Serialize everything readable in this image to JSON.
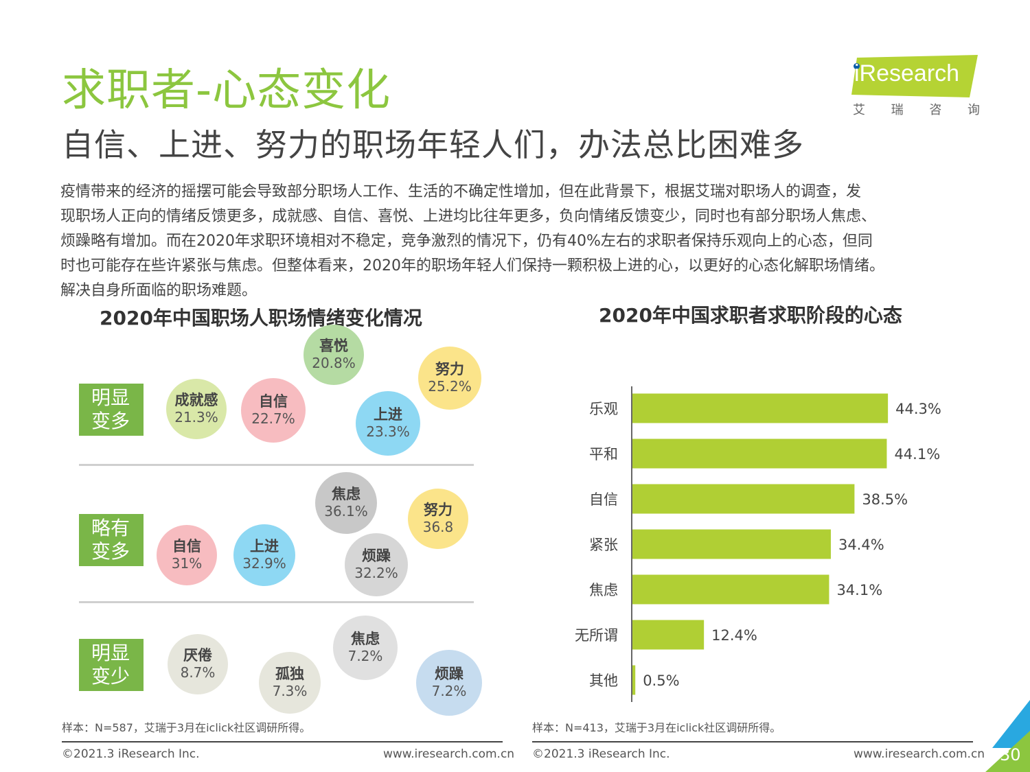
{
  "header": {
    "title": "求职者-心态变化",
    "subtitle": "自信、上进、努力的职场年轻人们，办法总比困难多",
    "logo_text": "iResearch",
    "logo_cn": [
      "艾",
      "瑞",
      "咨",
      "询"
    ]
  },
  "paragraph": [
    "疫情带来的经济的摇摆可能会导致部分职场人工作、生活的不确定性增加，但在此背景下，根据艾瑞对职场人的调查，发",
    "现职场人正向的情绪反馈更多，成就感、自信、喜悦、上进均比往年更多，负向情绪反馈变少，同时也有部分职场人焦虑、",
    "烦躁略有增加。而在2020年求职环境相对不稳定，竞争激烈的情况下，仍有40%左右的求职者保持乐观向上的心态，但同",
    "时也可能存在些许紧张与焦虑。但整体看来，2020年的职场年轻人们保持一颗积极上进的心，以更好的心态化解职场情绪。",
    "解决自身所面临的职场难题。"
  ],
  "left_chart": {
    "title": "2020年中国职场人职场情绪变化情况",
    "rows": [
      {
        "label_1": "明显",
        "label_2": "变多"
      },
      {
        "label_1": "略有",
        "label_2": "变多"
      },
      {
        "label_1": "明显",
        "label_2": "变少"
      }
    ],
    "bubbles": [
      {
        "name": "成就感",
        "value": "21.3%",
        "color": "#d9e8a8"
      },
      {
        "name": "自信",
        "value": "22.7%",
        "color": "#f7bcc0"
      },
      {
        "name": "喜悦",
        "value": "20.8%",
        "color": "#b5dba3"
      },
      {
        "name": "上进",
        "value": "23.3%",
        "color": "#8ed8f3"
      },
      {
        "name": "努力",
        "value": "25.2%",
        "color": "#fbe48a"
      },
      {
        "name": "自信",
        "value": "31%",
        "color": "#f7bcc0"
      },
      {
        "name": "上进",
        "value": "32.9%",
        "color": "#8ed8f3"
      },
      {
        "name": "焦虑",
        "value": "36.1%",
        "color": "#c8c8c8"
      },
      {
        "name": "烦躁",
        "value": "32.2%",
        "color": "#d6d6d6"
      },
      {
        "name": "努力",
        "value": "36.8",
        "color": "#fbe48a"
      },
      {
        "name": "厌倦",
        "value": "8.7%",
        "color": "#e6e6dc"
      },
      {
        "name": "孤独",
        "value": "7.3%",
        "color": "#e6e6dc"
      },
      {
        "name": "焦虑",
        "value": "7.2%",
        "color": "#e0e0e0"
      },
      {
        "name": "烦躁",
        "value": "7.2%",
        "color": "#c6dcef"
      }
    ],
    "note": "样本：N=587，艾瑞于3月在iclick社区调研所得。"
  },
  "chart_data": {
    "type": "bar",
    "orientation": "horizontal",
    "title": "2020年中国求职者求职阶段的心态",
    "categories": [
      "乐观",
      "平和",
      "自信",
      "紧张",
      "焦虑",
      "无所谓",
      "其他"
    ],
    "values": [
      44.3,
      44.1,
      38.5,
      34.4,
      34.1,
      12.4,
      0.5
    ],
    "value_labels": [
      "44.3%",
      "44.1%",
      "38.5%",
      "34.4%",
      "34.1%",
      "12.4%",
      "0.5%"
    ],
    "unit": "%",
    "xlim": [
      0,
      50
    ],
    "grid": false,
    "bar_color": "#b0cf34",
    "note": "样本：N=413，艾瑞于3月在iclick社区调研所得。"
  },
  "footer": {
    "copyright_left": "©2021.3 iResearch Inc.",
    "url_left": "www.iresearch.com.cn",
    "copyright_right": "©2021.3 iResearch Inc.",
    "url_right": "www.iresearch.com.cn",
    "page_number": "30"
  },
  "colors": {
    "title_green": "#8cc63f",
    "label_green": "#7ab648",
    "logo_green": "#b5d334",
    "corner_blue": "#29a8e0"
  }
}
